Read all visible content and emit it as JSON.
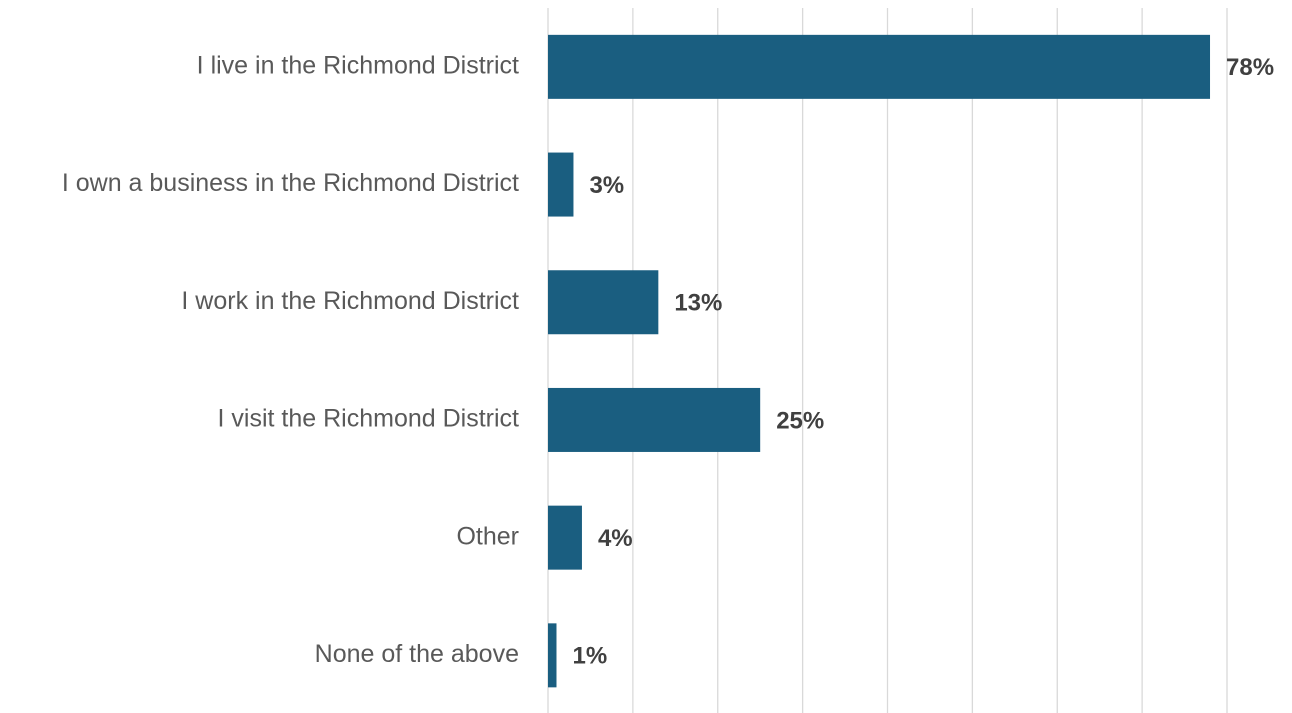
{
  "chart_data": {
    "type": "bar",
    "orientation": "horizontal",
    "categories": [
      "I live in the Richmond District",
      "I own a business in the Richmond District",
      "I work in the Richmond District",
      "I visit the Richmond District",
      "Other",
      "None of the above"
    ],
    "values": [
      78,
      3,
      13,
      25,
      4,
      1
    ],
    "data_labels": [
      "78%",
      "3%",
      "13%",
      "25%",
      "4%",
      "1%"
    ],
    "unit": "%",
    "xlim": [
      0,
      80
    ],
    "gridline_step": 10,
    "grid": true,
    "legend": "none",
    "title": "",
    "xlabel": "",
    "ylabel": "",
    "bar_color": "#1a5e80"
  }
}
